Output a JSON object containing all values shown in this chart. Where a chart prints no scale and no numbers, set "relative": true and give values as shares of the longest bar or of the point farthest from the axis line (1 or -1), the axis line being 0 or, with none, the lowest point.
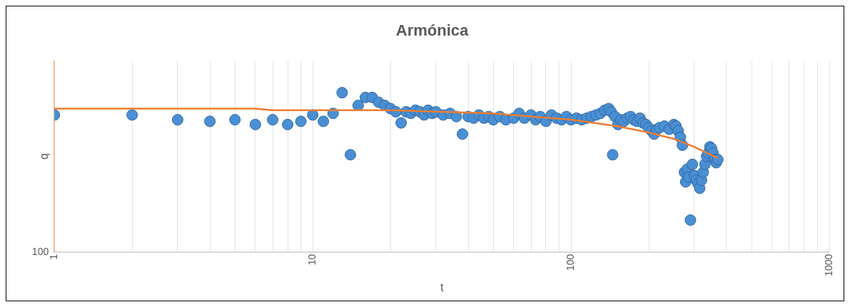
{
  "chart_data": {
    "type": "scatter",
    "title": "Armónica",
    "xlabel": "t",
    "ylabel": "q",
    "relative": true,
    "log": "x",
    "grid": "x",
    "legend": false,
    "marker": "circle",
    "xlim": [
      1,
      1000
    ],
    "xticks": [
      1,
      {
        "value": 2,
        "label": null
      },
      {
        "value": 3,
        "label": null
      },
      {
        "value": 4,
        "label": null
      },
      {
        "value": 5,
        "label": null
      },
      {
        "value": 6,
        "label": null
      },
      {
        "value": 7,
        "label": null
      },
      {
        "value": 8,
        "label": null
      },
      {
        "value": 9,
        "label": null
      },
      10,
      {
        "value": 20,
        "label": null
      },
      {
        "value": 30,
        "label": null
      },
      {
        "value": 40,
        "label": null
      },
      {
        "value": 50,
        "label": null
      },
      {
        "value": 60,
        "label": null
      },
      {
        "value": 70,
        "label": null
      },
      {
        "value": 80,
        "label": null
      },
      {
        "value": 90,
        "label": null
      },
      100,
      {
        "value": 200,
        "label": null
      },
      {
        "value": 300,
        "label": null
      },
      {
        "value": 400,
        "label": null
      },
      {
        "value": 500,
        "label": null
      },
      {
        "value": 600,
        "label": null
      },
      {
        "value": 700,
        "label": null
      },
      {
        "value": 800,
        "label": null
      },
      {
        "value": 900,
        "label": null
      },
      1000
    ],
    "annotations": [
      "100"
    ],
    "series": [
      {
        "color": "#4a8fd3",
        "x": [
          1,
          2,
          3,
          4,
          5,
          6,
          7,
          8,
          9,
          10,
          11,
          12,
          13,
          14,
          15,
          16,
          17,
          18,
          19,
          20,
          21,
          22,
          23,
          24,
          25,
          26,
          27,
          28,
          29,
          30,
          32,
          34,
          36,
          38,
          40,
          42,
          44,
          46,
          48,
          50,
          53,
          56,
          60,
          63,
          66,
          70,
          73,
          76,
          80,
          84,
          88,
          92,
          96,
          100,
          105,
          110,
          115,
          120,
          125,
          130,
          135,
          140,
          143,
          145,
          148,
          152,
          156,
          160,
          165,
          170,
          175,
          180,
          185,
          190,
          195,
          200,
          205,
          210,
          215,
          220,
          230,
          240,
          250,
          255,
          260,
          265,
          270,
          275,
          278,
          282,
          285,
          290,
          295,
          300,
          305,
          310,
          315,
          320,
          325,
          330,
          335,
          340,
          345,
          350,
          355,
          360,
          365,
          370
        ],
        "values": [
          0.86,
          0.86,
          0.83,
          0.82,
          0.83,
          0.8,
          0.83,
          0.8,
          0.82,
          0.86,
          0.82,
          0.87,
          1.0,
          0.61,
          0.92,
          0.97,
          0.97,
          0.94,
          0.92,
          0.9,
          0.88,
          0.81,
          0.88,
          0.87,
          0.89,
          0.88,
          0.86,
          0.89,
          0.87,
          0.88,
          0.86,
          0.87,
          0.85,
          0.74,
          0.85,
          0.84,
          0.86,
          0.84,
          0.85,
          0.83,
          0.85,
          0.83,
          0.84,
          0.87,
          0.84,
          0.86,
          0.83,
          0.85,
          0.82,
          0.86,
          0.84,
          0.83,
          0.85,
          0.83,
          0.84,
          0.83,
          0.84,
          0.85,
          0.86,
          0.87,
          0.89,
          0.9,
          0.88,
          0.61,
          0.85,
          0.8,
          0.83,
          0.82,
          0.84,
          0.85,
          0.83,
          0.82,
          0.84,
          0.81,
          0.8,
          0.78,
          0.76,
          0.74,
          0.77,
          0.78,
          0.79,
          0.77,
          0.8,
          0.79,
          0.76,
          0.72,
          0.67,
          0.5,
          0.44,
          0.52,
          0.47,
          0.2,
          0.55,
          0.48,
          0.45,
          0.43,
          0.4,
          0.45,
          0.5,
          0.55,
          0.6,
          0.62,
          0.66,
          0.65,
          0.62,
          0.58,
          0.56,
          0.58
        ]
      },
      {
        "type": "line",
        "color": "#ed7d31",
        "marker": "none",
        "x": [
          1,
          6,
          7,
          20,
          50,
          100,
          150,
          200,
          250,
          300,
          370
        ],
        "values": [
          0.9,
          0.9,
          0.89,
          0.89,
          0.87,
          0.83,
          0.79,
          0.75,
          0.71,
          0.66,
          0.59
        ]
      }
    ]
  }
}
